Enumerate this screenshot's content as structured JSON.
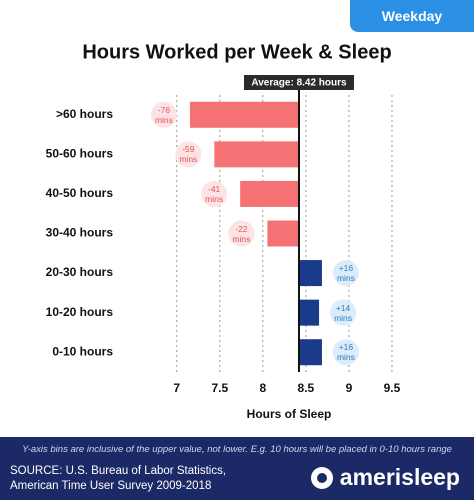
{
  "tab": "Weekday",
  "chart_data": {
    "type": "bar",
    "orientation": "horizontal",
    "title": "Hours Worked per Week & Sleep",
    "x_label": "Hours of Sleep",
    "categories": [
      ">60 hours",
      "50-60 hours",
      "40-50 hours",
      "30-40 hours",
      "20-30 hours",
      "10-20 hours",
      "0-10 hours"
    ],
    "baseline": 8.42,
    "baseline_label": "Average: 8.42 hours",
    "values": [
      -1.2667,
      -0.9833,
      -0.6833,
      -0.3667,
      0.2667,
      0.2333,
      0.2667
    ],
    "value_labels": [
      "-76 mins",
      "-59 mins",
      "-41 mins",
      "-22 mins",
      "+16 mins",
      "+14 mins",
      "+16 mins"
    ],
    "colors": {
      "negative": "#f47174",
      "positive": "#1a3a8c"
    },
    "xlim": [
      6.55,
      10
    ],
    "xticks": [
      7,
      7.5,
      8,
      8.5,
      9,
      9.5
    ],
    "grid": true
  },
  "footer": {
    "note": "Y-axis bins are inclusive of the upper value, not lower. E.g. 10 hours will be placed in 0-10 hours range",
    "source": [
      "SOURCE: U.S. Bureau of Labor Statistics,",
      "American Time User Survey 2009-2018"
    ],
    "brand": "amerisleep"
  }
}
